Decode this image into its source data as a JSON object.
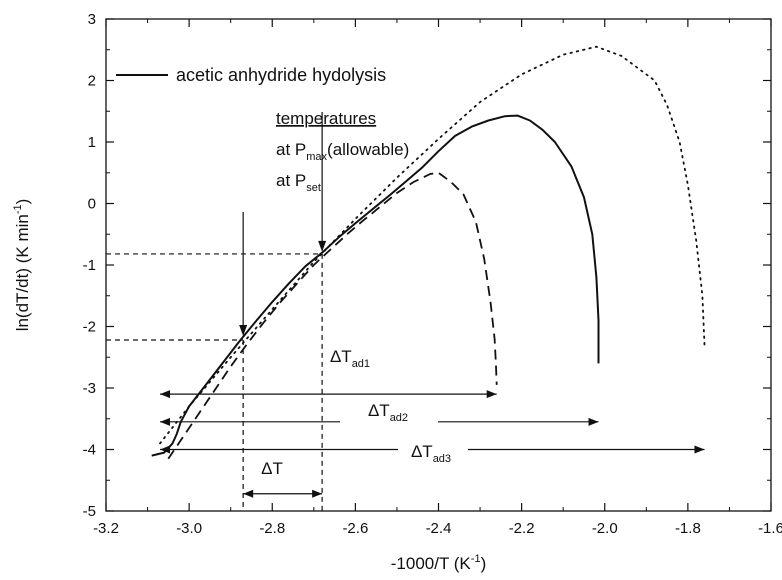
{
  "chart_data": {
    "type": "line",
    "xlabel": "-1000/T (K",
    "xlabel_sup": "-1",
    "xlabel_close": ")",
    "ylabel": "ln(dT/dt) (K min",
    "ylabel_sup": "-1",
    "ylabel_close": ")",
    "xlim": [
      -3.2,
      -1.6
    ],
    "ylim": [
      -5,
      3
    ],
    "xticks": [
      -3.2,
      -3.0,
      -2.8,
      -2.6,
      -2.4,
      -2.2,
      -2.0,
      -1.8,
      -1.6
    ],
    "xtick_labels": [
      "-3.2",
      "-3.0",
      "-2.8",
      "-2.6",
      "-2.4",
      "-2.2",
      "-2.0",
      "-1.8",
      "-1.6"
    ],
    "yticks": [
      -5,
      -4,
      -3,
      -2,
      -1,
      0,
      1,
      2,
      3
    ],
    "ytick_labels": [
      "-5",
      "-4",
      "-3",
      "-2",
      "-1",
      "0",
      "1",
      "2",
      "3"
    ],
    "grid": false,
    "legend": {
      "placement": "top-left",
      "label": "acetic anhydride hydolysis",
      "style": "solid"
    },
    "series": [
      {
        "name": "acetic anhydride hydolysis",
        "style": "solid",
        "x": [
          -3.09,
          -3.06,
          -3.04,
          -3.03,
          -3.02,
          -3.0,
          -2.96,
          -2.92,
          -2.88,
          -2.84,
          -2.8,
          -2.76,
          -2.72,
          -2.68,
          -2.64,
          -2.6,
          -2.56,
          -2.52,
          -2.48,
          -2.44,
          -2.4,
          -2.36,
          -2.32,
          -2.28,
          -2.24,
          -2.21,
          -2.18,
          -2.15,
          -2.12,
          -2.08,
          -2.05,
          -2.03,
          -2.02,
          -2.015,
          -2.015
        ],
        "y": [
          -4.1,
          -4.05,
          -3.9,
          -3.75,
          -3.55,
          -3.3,
          -2.95,
          -2.6,
          -2.25,
          -1.92,
          -1.6,
          -1.3,
          -1.02,
          -0.8,
          -0.55,
          -0.32,
          -0.1,
          0.12,
          0.35,
          0.58,
          0.85,
          1.1,
          1.25,
          1.35,
          1.42,
          1.43,
          1.35,
          1.2,
          1.0,
          0.6,
          0.1,
          -0.5,
          -1.2,
          -1.9,
          -2.6
        ]
      },
      {
        "style": "dashed",
        "x": [
          -3.05,
          -3.02,
          -2.98,
          -2.94,
          -2.9,
          -2.86,
          -2.82,
          -2.78,
          -2.74,
          -2.7,
          -2.66,
          -2.62,
          -2.58,
          -2.54,
          -2.5,
          -2.46,
          -2.42,
          -2.4,
          -2.37,
          -2.34,
          -2.31,
          -2.29,
          -2.275,
          -2.265,
          -2.262,
          -2.26
        ],
        "y": [
          -4.15,
          -3.85,
          -3.45,
          -3.05,
          -2.65,
          -2.28,
          -1.93,
          -1.6,
          -1.3,
          -1.0,
          -0.75,
          -0.5,
          -0.27,
          -0.05,
          0.17,
          0.35,
          0.48,
          0.5,
          0.35,
          0.15,
          -0.3,
          -0.9,
          -1.6,
          -2.2,
          -2.6,
          -2.95
        ]
      },
      {
        "style": "dotted",
        "x": [
          -3.07,
          -3.0,
          -2.9,
          -2.8,
          -2.7,
          -2.6,
          -2.5,
          -2.4,
          -2.3,
          -2.2,
          -2.1,
          -2.02,
          -1.96,
          -1.92,
          -1.88,
          -1.85,
          -1.82,
          -1.8,
          -1.78,
          -1.765,
          -1.76
        ],
        "y": [
          -3.9,
          -3.3,
          -2.5,
          -1.72,
          -0.95,
          -0.25,
          0.42,
          1.05,
          1.65,
          2.1,
          2.42,
          2.55,
          2.4,
          2.2,
          2.0,
          1.6,
          1.0,
          0.3,
          -0.6,
          -1.5,
          -2.3
        ]
      }
    ],
    "annotations": {
      "heading": "temperatures",
      "pmax_prefix": "at P",
      "pmax_sub": "max",
      "pmax_suffix": "(allowable)",
      "pset_prefix": "at P",
      "pset_sub": "set",
      "delta_t": "ΔT",
      "dtad1_main": "ΔT",
      "dtad1_sub": "ad1",
      "dtad2_main": "ΔT",
      "dtad2_sub": "ad2",
      "dtad3_main": "ΔT",
      "dtad3_sub": "ad3"
    },
    "reference_points": {
      "pmax": {
        "x": -2.68,
        "y": -0.82
      },
      "pset": {
        "x": -2.87,
        "y": -2.22
      },
      "arrow_start_x": -3.07,
      "ad1_end_x": -2.26,
      "ad2_end_x": -2.015,
      "ad3_end_x": -1.76,
      "ad1_y": -3.1,
      "ad2_y": -3.55,
      "ad3_y": -4.0,
      "delta_t_y": -4.72
    }
  }
}
